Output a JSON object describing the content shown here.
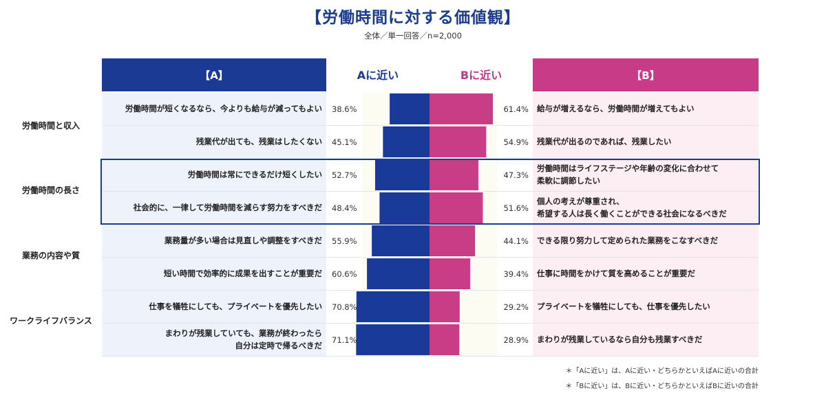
{
  "title": "【労働時間に対する価値観】",
  "subtitle": "全体／単一回答／n=2,000",
  "header": {
    "a": "【A】",
    "a_near": "Aに近い",
    "b_near": "Bに近い",
    "b": "【B】"
  },
  "colors": {
    "a": "#1a3a9a",
    "b": "#c93d87",
    "frame": "#1b3a93"
  },
  "groups": [
    {
      "label": "労働時間と収入"
    },
    {
      "label": "労働時間の長さ"
    },
    {
      "label": "業務の内容や質"
    },
    {
      "label": "ワークライフバランス"
    }
  ],
  "chart_data": {
    "type": "bar",
    "orientation": "horizontal-diverging",
    "series": [
      {
        "name": "Aに近い",
        "values": [
          38.6,
          45.1,
          52.7,
          48.4,
          55.9,
          60.6,
          70.8,
          71.1
        ]
      },
      {
        "name": "Bに近い",
        "values": [
          61.4,
          54.9,
          47.3,
          51.6,
          44.1,
          39.4,
          29.2,
          28.9
        ]
      }
    ],
    "unit": "%",
    "xlim": [
      0,
      100
    ],
    "rows": [
      {
        "group": "労働時間と収入",
        "a_label": "労働時間が短くなるなら、今よりも給与が減ってもよい",
        "a_pct": "38.6%",
        "b_pct": "61.4%",
        "b_label": "給与が増えるなら、労働時間が増えてもよい"
      },
      {
        "group": "労働時間と収入",
        "a_label": "残業代が出ても、残業はしたくない",
        "a_pct": "45.1%",
        "b_pct": "54.9%",
        "b_label": "残業代が出るのであれば、残業したい"
      },
      {
        "group": "労働時間の長さ",
        "a_label": "労働時間は常にできるだけ短くしたい",
        "a_pct": "52.7%",
        "b_pct": "47.3%",
        "b_label": "労働時間はライフステージや年齢の変化に合わせて\n柔軟に調節したい"
      },
      {
        "group": "労働時間の長さ",
        "a_label": "社会的に、一律して労働時間を減らす努力をすべきだ",
        "a_pct": "48.4%",
        "b_pct": "51.6%",
        "b_label": "個人の考えが尊重され、\n希望する人は長く働くことができる社会になるべきだ"
      },
      {
        "group": "業務の内容や質",
        "a_label": "業務量が多い場合は見直しや調整をすべきだ",
        "a_pct": "55.9%",
        "b_pct": "44.1%",
        "b_label": "できる限り努力して定められた業務をこなすべきだ"
      },
      {
        "group": "業務の内容や質",
        "a_label": "短い時間で効率的に成果を出すことが重要だ",
        "a_pct": "60.6%",
        "b_pct": "39.4%",
        "b_label": "仕事に時間をかけて質を高めることが重要だ"
      },
      {
        "group": "ワークライフバランス",
        "a_label": "仕事を犠牲にしても、プライベートを優先したい",
        "a_pct": "70.8%",
        "b_pct": "29.2%",
        "b_label": "プライベートを犠牲にしても、仕事を優先したい"
      },
      {
        "group": "ワークライフバランス",
        "a_label": "まわりが残業していても、業務が終わったら\n自分は定時で帰るべきだ",
        "a_pct": "71.1%",
        "b_pct": "28.9%",
        "b_label": "まわりが残業しているなら自分も残業すべきだ"
      }
    ],
    "highlighted_rows": [
      2,
      3
    ]
  },
  "notes": [
    "＊「Aに近い」は、Aに近い・どちらかといえばAに近いの合計",
    "＊「Bに近い」は、Bに近い・どちらかといえばBに近いの合計"
  ]
}
